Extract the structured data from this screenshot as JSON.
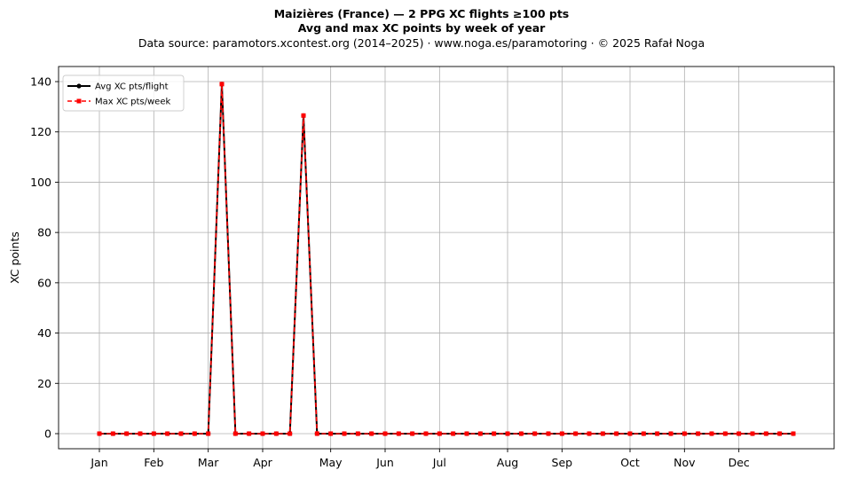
{
  "header": {
    "title": "Maizières (France)  —  2 PPG XC flights ≥100 pts",
    "subtitle": "Avg and max XC points by week of year",
    "source": "Data source: paramotors.xcontest.org (2014–2025)  ·  www.noga.es/paramotoring  ·  © 2025 Rafał Noga"
  },
  "chart_data": {
    "type": "line",
    "title": "Maizières (France)  —  2 PPG XC flights ≥100 pts",
    "subtitle": "Avg and max XC points by week of year",
    "ylabel": "XC points",
    "xlabel": "",
    "ylim": [
      -6,
      146
    ],
    "yticks": [
      0,
      20,
      40,
      60,
      80,
      100,
      120,
      140
    ],
    "xlim": [
      -3,
      54
    ],
    "x_ticks": [
      {
        "label": "Jan",
        "week": 0
      },
      {
        "label": "Feb",
        "week": 4
      },
      {
        "label": "Mar",
        "week": 8
      },
      {
        "label": "Apr",
        "week": 12
      },
      {
        "label": "May",
        "week": 17
      },
      {
        "label": "Jun",
        "week": 21
      },
      {
        "label": "Jul",
        "week": 25
      },
      {
        "label": "Aug",
        "week": 30
      },
      {
        "label": "Sep",
        "week": 34
      },
      {
        "label": "Oct",
        "week": 39
      },
      {
        "label": "Nov",
        "week": 43
      },
      {
        "label": "Dec",
        "week": 47
      }
    ],
    "grid": true,
    "legend_position": "top-left",
    "x": [
      0,
      1,
      2,
      3,
      4,
      5,
      6,
      7,
      8,
      9,
      10,
      11,
      12,
      13,
      14,
      15,
      16,
      17,
      18,
      19,
      20,
      21,
      22,
      23,
      24,
      25,
      26,
      27,
      28,
      29,
      30,
      31,
      32,
      33,
      34,
      35,
      36,
      37,
      38,
      39,
      40,
      41,
      42,
      43,
      44,
      45,
      46,
      47,
      48,
      49,
      50,
      51
    ],
    "series": [
      {
        "name": "Avg XC pts/flight",
        "color": "#000000",
        "style": "solid",
        "marker": "circle",
        "values": [
          0,
          0,
          0,
          0,
          0,
          0,
          0,
          0,
          0,
          139,
          0,
          0,
          0,
          0,
          0,
          126.5,
          0,
          0,
          0,
          0,
          0,
          0,
          0,
          0,
          0,
          0,
          0,
          0,
          0,
          0,
          0,
          0,
          0,
          0,
          0,
          0,
          0,
          0,
          0,
          0,
          0,
          0,
          0,
          0,
          0,
          0,
          0,
          0,
          0,
          0,
          0,
          0
        ]
      },
      {
        "name": "Max XC pts/week",
        "color": "#ff0000",
        "style": "dashed",
        "marker": "square",
        "values": [
          0,
          0,
          0,
          0,
          0,
          0,
          0,
          0,
          0,
          139,
          0,
          0,
          0,
          0,
          0,
          126.5,
          0,
          0,
          0,
          0,
          0,
          0,
          0,
          0,
          0,
          0,
          0,
          0,
          0,
          0,
          0,
          0,
          0,
          0,
          0,
          0,
          0,
          0,
          0,
          0,
          0,
          0,
          0,
          0,
          0,
          0,
          0,
          0,
          0,
          0,
          0,
          0
        ]
      }
    ]
  }
}
